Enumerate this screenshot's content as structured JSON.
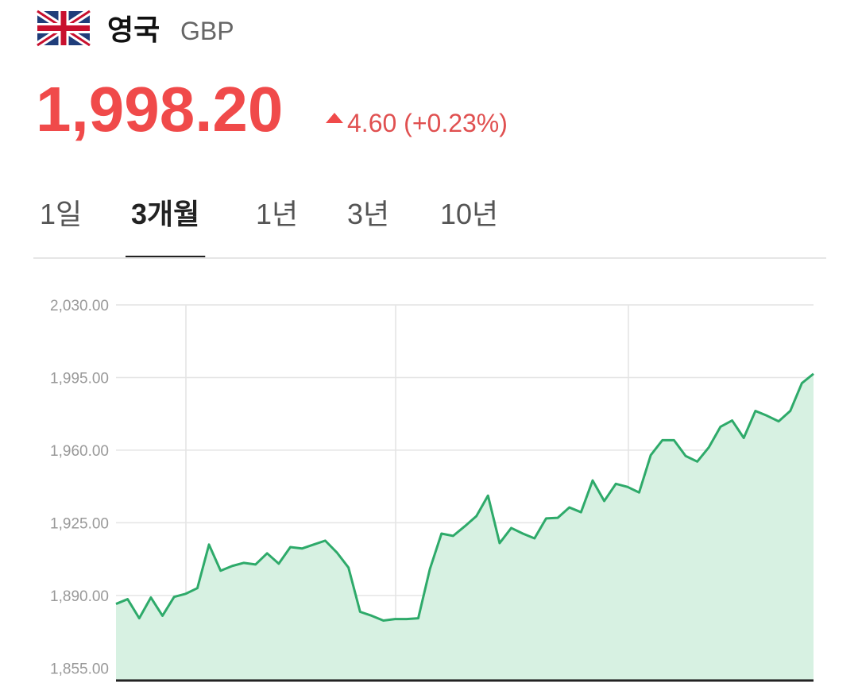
{
  "header": {
    "country": "영국",
    "currency": "GBP",
    "price": "1,998.20",
    "change": "4.60",
    "change_percent": "(+0.23%)"
  },
  "tabs": {
    "items": [
      "1일",
      "3개월",
      "1년",
      "3년",
      "10년"
    ],
    "selected": 1
  },
  "chart_data": {
    "type": "area",
    "categories": [
      null,
      null,
      null,
      null,
      null,
      null,
      null,
      null,
      null,
      null,
      null,
      null,
      null,
      null,
      null,
      null,
      null,
      null,
      null,
      null,
      null,
      null,
      null,
      null,
      null,
      null,
      null,
      null,
      null,
      null,
      null,
      null,
      null,
      null,
      null,
      null,
      null,
      null,
      null,
      null,
      null,
      null,
      null,
      null,
      null,
      null,
      null,
      null,
      null,
      null,
      null,
      null,
      null,
      null,
      null,
      null,
      null,
      null,
      null,
      null,
      null
    ],
    "values": [
      1885.9,
      1888.2,
      1879.0,
      1889.0,
      1880.2,
      1889.3,
      1890.8,
      1893.5,
      1914.5,
      1901.9,
      1904.2,
      1905.7,
      1904.9,
      1910.3,
      1905.3,
      1913.3,
      1912.6,
      1914.5,
      1916.4,
      1910.7,
      1903.4,
      1882.1,
      1880.2,
      1877.9,
      1878.6,
      1878.6,
      1879.0,
      1902.7,
      1919.8,
      1918.7,
      1923.3,
      1928.2,
      1938.1,
      1915.2,
      1922.5,
      1919.8,
      1917.5,
      1927.1,
      1927.4,
      1932.4,
      1930.1,
      1945.4,
      1935.5,
      1943.8,
      1942.3,
      1939.6,
      1957.6,
      1964.8,
      1964.8,
      1957.2,
      1954.5,
      1961.4,
      1971.3,
      1974.3,
      1965.9,
      1978.9,
      1976.6,
      1973.9,
      1978.9,
      1992.3,
      1996.8
    ],
    "color": "#2eaa6a",
    "fill_color": "#d7f1e2",
    "ylim": [
      1849,
      2030
    ],
    "yticks": [
      {
        "value": 1855,
        "label": "1,855.00"
      },
      {
        "value": 1890,
        "label": "1,890.00"
      },
      {
        "value": 1925,
        "label": "1,925.00"
      },
      {
        "value": 1960,
        "label": "1,960.00"
      },
      {
        "value": 1995,
        "label": "1,995.00"
      },
      {
        "value": 2030,
        "label": "2,030.00"
      }
    ],
    "grid": true
  }
}
